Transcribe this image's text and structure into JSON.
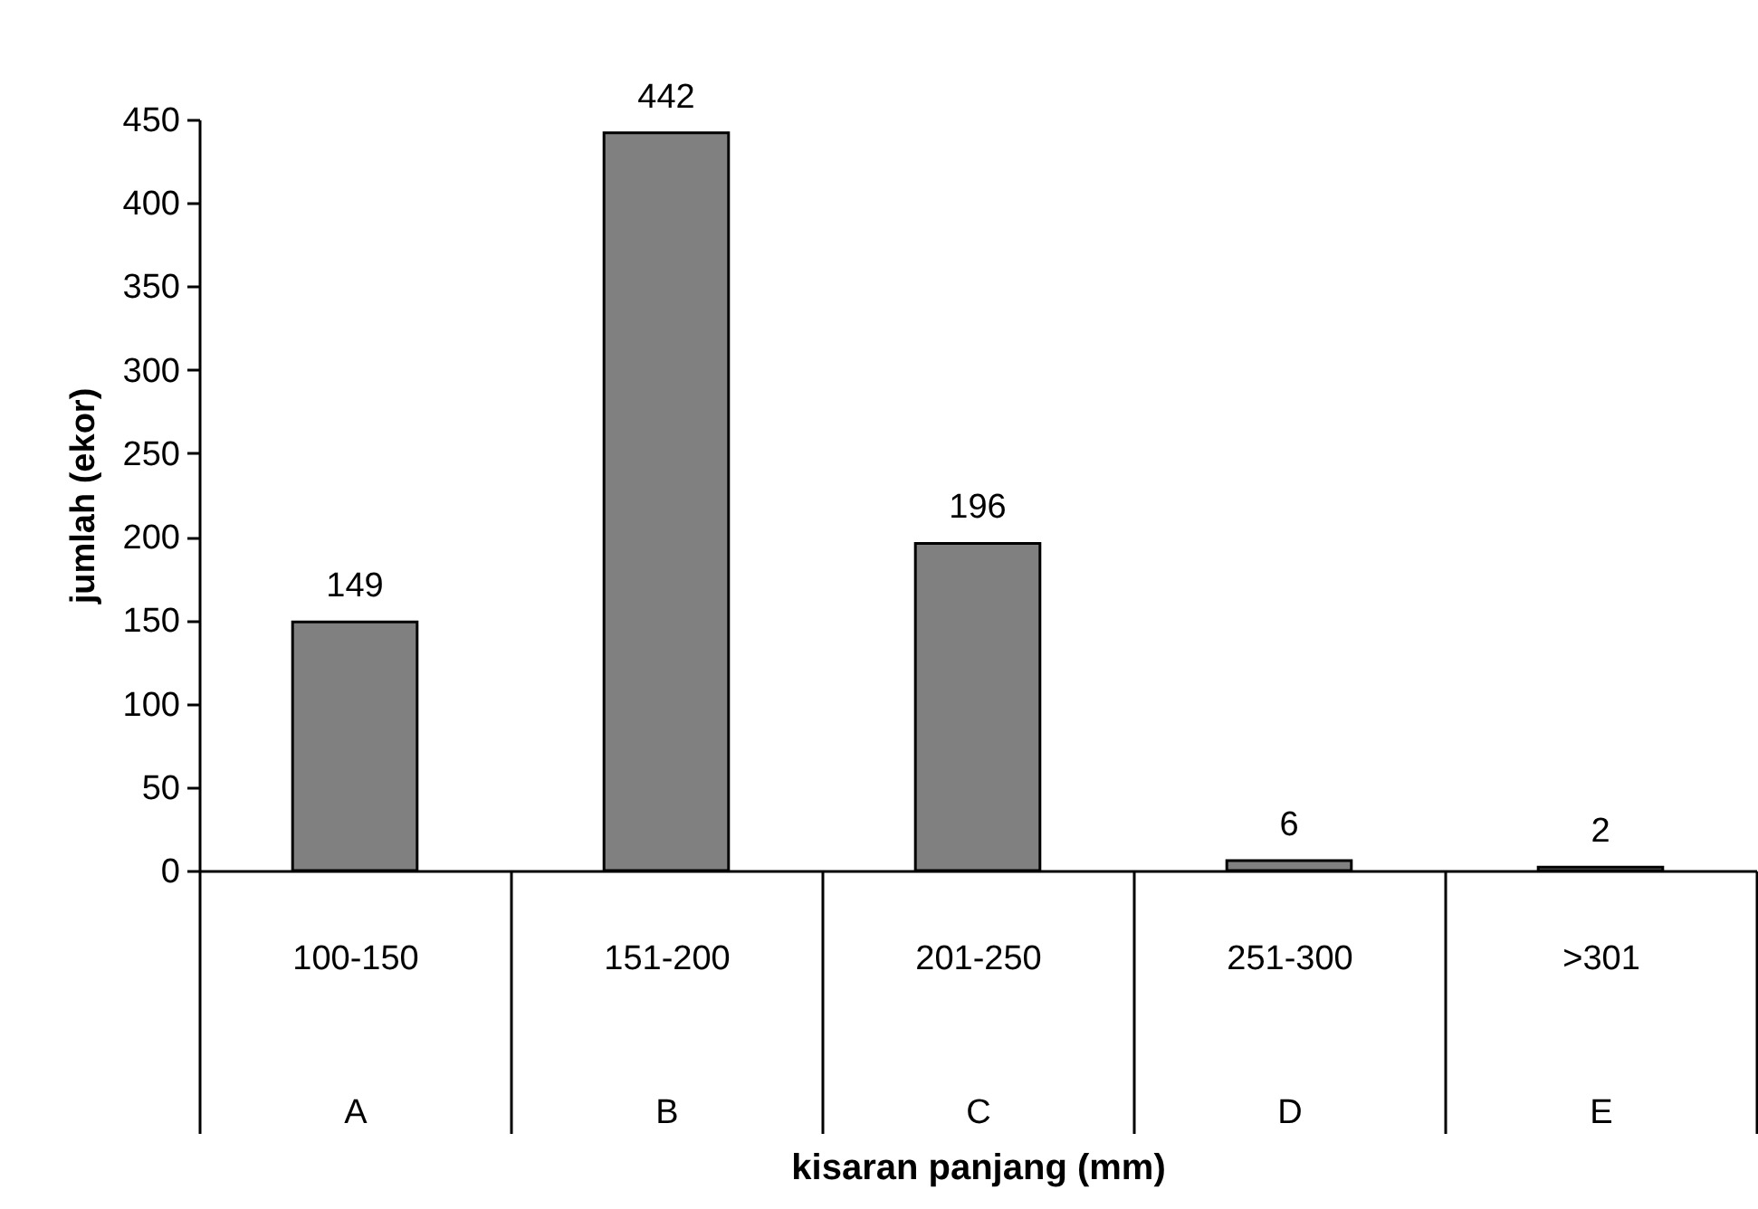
{
  "chart_data": {
    "type": "bar",
    "xlabel": "kisaran panjang (mm)",
    "ylabel": "jumlah (ekor)",
    "categories": [
      "100-150",
      "151-200",
      "201-250",
      "251-300",
      ">301"
    ],
    "annotations": [
      "A",
      "B",
      "C",
      "D",
      "E"
    ],
    "values": [
      149,
      442,
      196,
      6,
      2
    ],
    "color": "#808080",
    "data_labels": true,
    "ylim": [
      0,
      450
    ],
    "yticks": [
      0,
      50,
      100,
      150,
      200,
      250,
      300,
      350,
      400,
      450
    ],
    "grid": false
  }
}
